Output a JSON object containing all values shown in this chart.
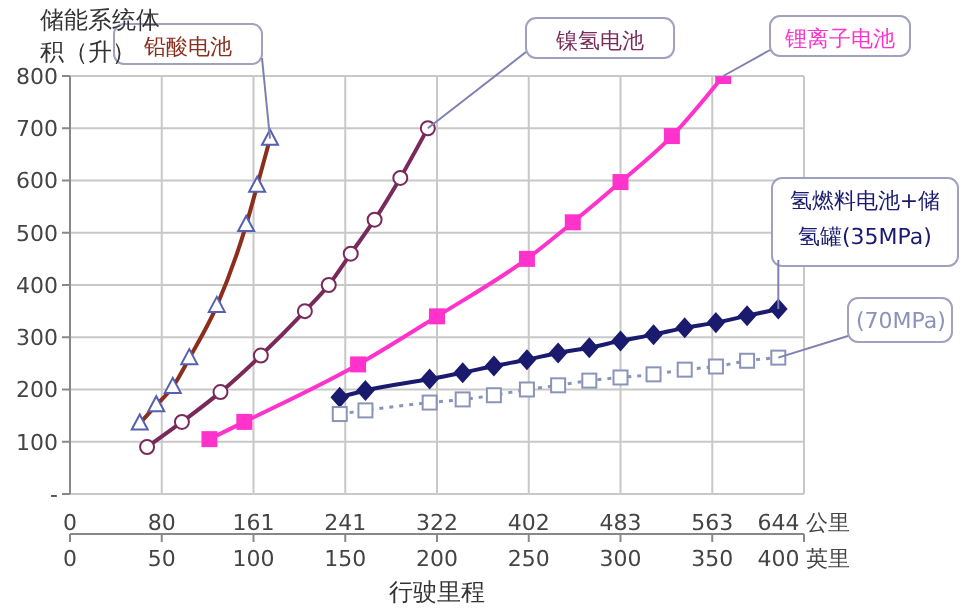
{
  "chart_data": {
    "type": "line",
    "ylabel": "储能系统体积（升）",
    "xlabel": "行驶里程",
    "xlim": [
      0,
      400
    ],
    "xticks": [
      0,
      50,
      100,
      150,
      200,
      250,
      300,
      350,
      {
        "value": 400,
        "label": "400 英里"
      }
    ],
    "x2lim": [
      0,
      644
    ],
    "x2ticks": [
      0,
      {
        "value": 80.5,
        "label": "80"
      },
      161,
      {
        "value": 241.5,
        "label": "241"
      },
      322,
      {
        "value": 402.5,
        "label": "402"
      },
      483,
      {
        "value": 563.5,
        "label": "563"
      },
      {
        "value": 644,
        "label": "644 公里"
      }
    ],
    "ylim": [
      0,
      800
    ],
    "yticks": [
      {
        "value": 0,
        "label": "-"
      },
      100,
      200,
      300,
      400,
      500,
      600,
      700,
      800
    ],
    "grid": true,
    "series": [
      {
        "name": "铅酸电池",
        "color": "#8b2e1e",
        "marker": "triangle",
        "line_style": "solid",
        "x": [
          38,
          47,
          56,
          65,
          80,
          96,
          102,
          109
        ],
        "values": [
          135,
          170,
          205,
          260,
          360,
          515,
          590,
          680
        ]
      },
      {
        "name": "镍氢电池",
        "color": "#7a2a5a",
        "marker": "circle",
        "line_style": "solid",
        "x": [
          42,
          61,
          82,
          104,
          128,
          141,
          153,
          166,
          180,
          195
        ],
        "values": [
          90,
          138,
          195,
          265,
          350,
          400,
          460,
          525,
          605,
          700
        ]
      },
      {
        "name": "锂离子电池",
        "color": "#ff33cc",
        "marker": "square",
        "line_style": "solid",
        "x": [
          76,
          95,
          157,
          200,
          249,
          274,
          300,
          328,
          356
        ],
        "values": [
          105,
          138,
          248,
          340,
          450,
          520,
          597,
          685,
          800
        ]
      },
      {
        "name": "氢燃料电池+储氢罐(35MPa)",
        "color": "#1a1a6e",
        "marker": "diamond",
        "line_style": "solid",
        "x": [
          147,
          161,
          196,
          214,
          231,
          249,
          266,
          283,
          300,
          318,
          335,
          352,
          369,
          386
        ],
        "values": [
          185,
          198,
          220,
          232,
          245,
          257,
          270,
          280,
          293,
          305,
          318,
          328,
          341,
          354
        ]
      },
      {
        "name": "(70MPa)",
        "color": "#8a93b8",
        "marker": "square",
        "line_style": "dotted",
        "x": [
          147,
          161,
          196,
          214,
          231,
          249,
          266,
          283,
          300,
          318,
          335,
          352,
          369,
          386
        ],
        "values": [
          153,
          160,
          175,
          181,
          189,
          200,
          208,
          217,
          223,
          229,
          238,
          244,
          255,
          261
        ]
      }
    ]
  }
}
